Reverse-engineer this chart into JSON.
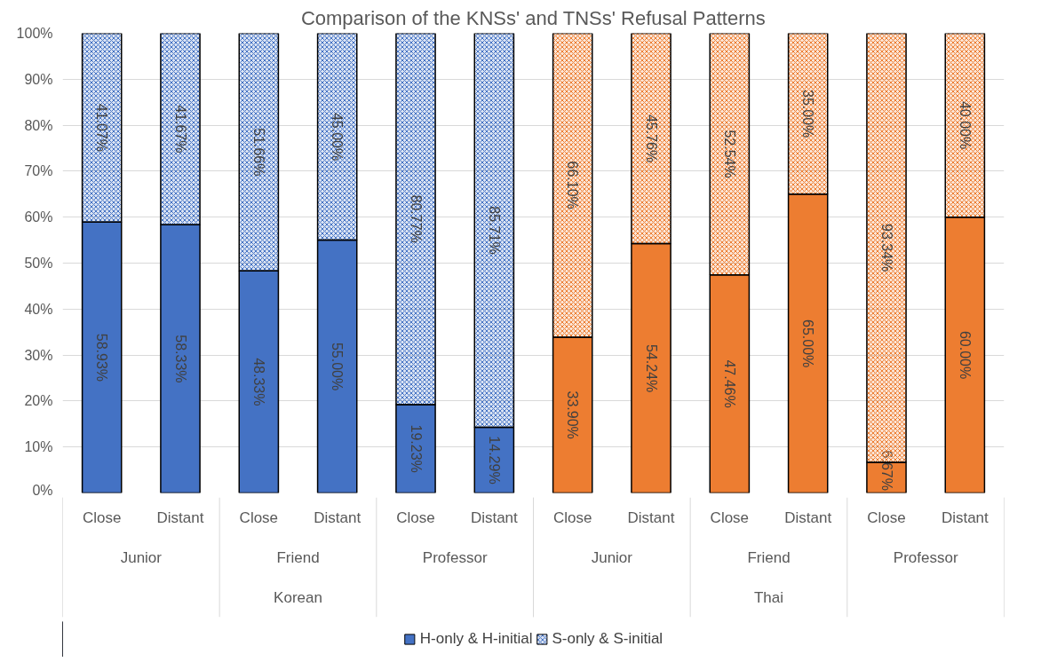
{
  "chart_data": {
    "type": "bar",
    "title": "Comparison of the KNSs' and TNSs' Refusal Patterns",
    "categories": [
      "Close",
      "Distant",
      "Close",
      "Distant",
      "Close",
      "Distant",
      "Close",
      "Distant",
      "Close",
      "Distant",
      "Close",
      "Distant"
    ],
    "stacked": true,
    "series": [
      {
        "name": "H-only & H-initial",
        "color": "#4472c4",
        "colors": [
          "#4472c4",
          "#4472c4",
          "#4472c4",
          "#4472c4",
          "#4472c4",
          "#4472c4",
          "#ed7d31",
          "#ed7d31",
          "#ed7d31",
          "#ed7d31",
          "#ed7d31",
          "#ed7d31"
        ],
        "values": [
          58.93,
          58.33,
          48.33,
          55.0,
          19.23,
          14.29,
          33.9,
          54.24,
          47.46,
          65.0,
          6.67,
          60.0
        ],
        "value_labels": [
          "58.93%",
          "58.33%",
          "48.33%",
          "55.00%",
          "19.23%",
          "14.29%",
          "33.90%",
          "54.24%",
          "47.46%",
          "65.00%",
          "6.67%",
          "60.00%"
        ]
      },
      {
        "name": "S-only & S-initial",
        "color": "#4472c4",
        "colors": [
          "#4472c4",
          "#4472c4",
          "#4472c4",
          "#4472c4",
          "#4472c4",
          "#4472c4",
          "#ed7d31",
          "#ed7d31",
          "#ed7d31",
          "#ed7d31",
          "#ed7d31",
          "#ed7d31"
        ],
        "values": [
          41.07,
          41.67,
          51.66,
          45.0,
          80.77,
          85.71,
          66.1,
          45.76,
          52.54,
          35.0,
          93.34,
          40.0
        ],
        "value_labels": [
          "41.07%",
          "41.67%",
          "51.66%",
          "45.00%",
          "80.77%",
          "85.71%",
          "66.10%",
          "45.76%",
          "52.54%",
          "35.00%",
          "93.34%",
          "40.00%"
        ]
      }
    ],
    "annotations": [
      "Junior",
      "Friend",
      "Professor",
      "Junior",
      "Friend",
      "Professor",
      "Korean",
      "Thai"
    ],
    "ylim": [
      0,
      100
    ],
    "yticks": [
      {
        "value": 0,
        "label": "0%"
      },
      {
        "value": 10,
        "label": "10%"
      },
      {
        "value": 20,
        "label": "20%"
      },
      {
        "value": 30,
        "label": "30%"
      },
      {
        "value": 40,
        "label": "40%"
      },
      {
        "value": 50,
        "label": "50%"
      },
      {
        "value": 60,
        "label": "60%"
      },
      {
        "value": 70,
        "label": "70%"
      },
      {
        "value": 80,
        "label": "80%"
      },
      {
        "value": 90,
        "label": "90%"
      },
      {
        "value": 100,
        "label": "100%"
      }
    ],
    "grid": "y",
    "legend": "bottom"
  }
}
